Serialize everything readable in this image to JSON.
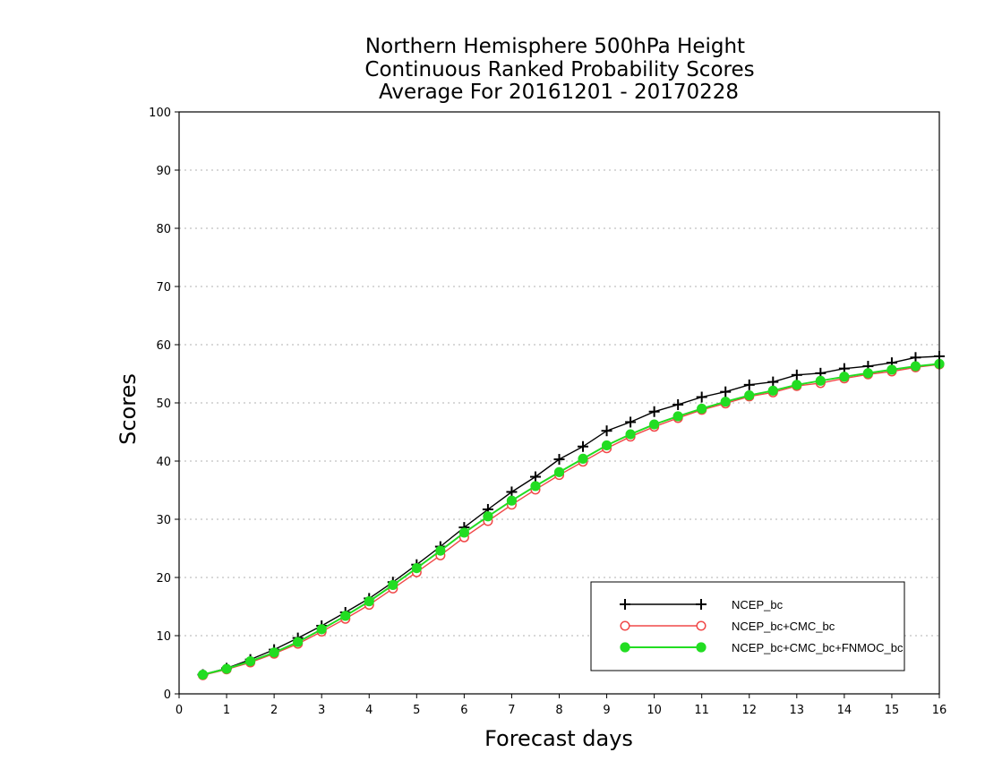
{
  "chart_data": {
    "type": "line",
    "title_lines": [
      "Northern Hemisphere 500hPa Height",
      "Continuous Ranked Probability Scores",
      "Average For 20161201 - 20170228"
    ],
    "xlabel": "Forecast days",
    "ylabel": "Scores",
    "xlim": [
      0,
      16
    ],
    "ylim": [
      0,
      100
    ],
    "x_ticks": [
      "0",
      "1",
      "2",
      "3",
      "4",
      "5",
      "6",
      "7",
      "8",
      "9",
      "10",
      "11",
      "12",
      "13",
      "14",
      "15",
      "16"
    ],
    "y_ticks": [
      "0",
      "10",
      "20",
      "30",
      "40",
      "50",
      "60",
      "70",
      "80",
      "90",
      "100"
    ],
    "grid": "horizontal dotted",
    "legend_position": "bottom-right",
    "x": [
      0.5,
      1,
      1.5,
      2,
      2.5,
      3,
      3.5,
      4,
      4.5,
      5,
      5.5,
      6,
      6.5,
      7,
      7.5,
      8,
      8.5,
      9,
      9.5,
      10,
      10.5,
      11,
      11.5,
      12,
      12.5,
      13,
      13.5,
      14,
      14.5,
      15,
      15.5,
      16
    ],
    "series": [
      {
        "name": "NCEP_bc",
        "color": "#000000",
        "marker": "plus",
        "values": [
          3.3,
          4.4,
          5.9,
          7.6,
          9.6,
          11.7,
          14.0,
          16.4,
          19.2,
          22.2,
          25.3,
          28.6,
          31.7,
          34.7,
          37.3,
          40.3,
          42.5,
          45.2,
          46.7,
          48.5,
          49.7,
          51.0,
          51.9,
          53.1,
          53.6,
          54.8,
          55.1,
          55.9,
          56.3,
          56.9,
          57.8,
          58.0
        ]
      },
      {
        "name": "NCEP_bc+CMC_bc",
        "color": "#f04848",
        "marker": "open-circle",
        "values": [
          3.2,
          4.2,
          5.4,
          6.9,
          8.6,
          10.7,
          12.9,
          15.3,
          18.1,
          20.9,
          23.8,
          26.9,
          29.7,
          32.5,
          35.1,
          37.6,
          39.9,
          42.2,
          44.2,
          45.9,
          47.4,
          48.8,
          49.9,
          51.1,
          51.8,
          52.9,
          53.4,
          54.2,
          54.9,
          55.4,
          56.1,
          56.6
        ]
      },
      {
        "name": "NCEP_bc+CMC_bc+FNMOC_bc",
        "color": "#22dd22",
        "marker": "filled-circle",
        "values": [
          3.3,
          4.3,
          5.6,
          7.1,
          8.9,
          11.1,
          13.4,
          15.9,
          18.7,
          21.6,
          24.6,
          27.7,
          30.5,
          33.2,
          35.7,
          38.1,
          40.4,
          42.7,
          44.6,
          46.3,
          47.7,
          49.0,
          50.2,
          51.3,
          52.1,
          53.1,
          53.8,
          54.5,
          55.1,
          55.7,
          56.3,
          56.7
        ]
      }
    ]
  }
}
